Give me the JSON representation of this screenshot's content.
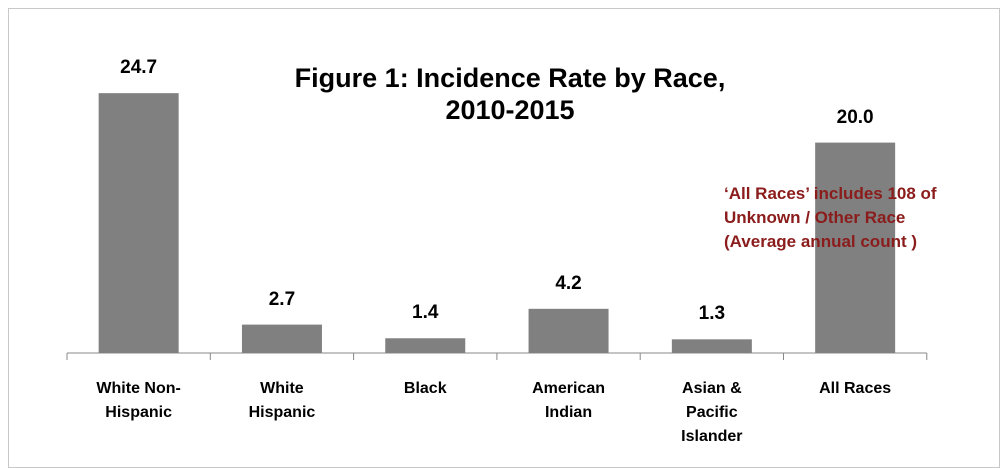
{
  "chart_data": {
    "type": "bar",
    "title": "Figure 1:  Incidence Rate by Race, 2010-2015",
    "categories": [
      "White Non-Hispanic",
      "White Hispanic",
      "Black",
      "American Indian",
      "Asian & Pacific Islander",
      "All Races"
    ],
    "values": [
      24.7,
      2.7,
      1.4,
      4.2,
      1.3,
      20.0
    ],
    "value_labels": [
      "24.7",
      "2.7",
      "1.4",
      "4.2",
      "1.3",
      "20.0"
    ],
    "color": "#808080",
    "annotations": [
      "‘All Races’  includes 108 of",
      "Unknown / Other  Race",
      "(Average annual count )"
    ]
  }
}
